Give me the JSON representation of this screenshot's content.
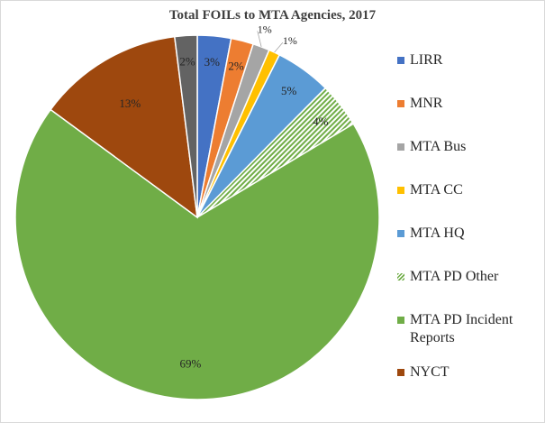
{
  "chart_data": {
    "type": "pie",
    "title": "Total FOILs to MTA Agencies, 2017",
    "slices": [
      {
        "label": "LIRR",
        "value": 3,
        "data_label": "3%",
        "color": "#4472c4",
        "pattern": "solid"
      },
      {
        "label": "MNR",
        "value": 2,
        "data_label": "2%",
        "color": "#ed7d31",
        "pattern": "solid"
      },
      {
        "label": "MTA Bus",
        "value": 1.5,
        "data_label": "1%",
        "color": "#a5a5a5",
        "pattern": "solid"
      },
      {
        "label": "MTA CC",
        "value": 1,
        "data_label": "1%",
        "color": "#ffc000",
        "pattern": "solid"
      },
      {
        "label": "MTA HQ",
        "value": 5,
        "data_label": "5%",
        "color": "#5b9bd5",
        "pattern": "solid"
      },
      {
        "label": "MTA PD Other",
        "value": 4,
        "data_label": "4%",
        "color": "#70ad47",
        "pattern": "hatch"
      },
      {
        "label": "MTA PD Incident Reports",
        "value": 69,
        "data_label": "69%",
        "color": "#70ad47",
        "pattern": "solid"
      },
      {
        "label": "NYCT",
        "value": 13,
        "data_label": "13%",
        "color": "#9e480e",
        "pattern": "solid"
      },
      {
        "label": "",
        "value": 2,
        "data_label": "2%",
        "color": "#636363",
        "pattern": "solid"
      }
    ],
    "legend": [
      "LIRR",
      "MNR",
      "MTA Bus",
      "MTA CC",
      "MTA HQ",
      "MTA PD Other",
      "MTA PD Incident Reports",
      "NYCT"
    ],
    "legend_position": "right"
  }
}
